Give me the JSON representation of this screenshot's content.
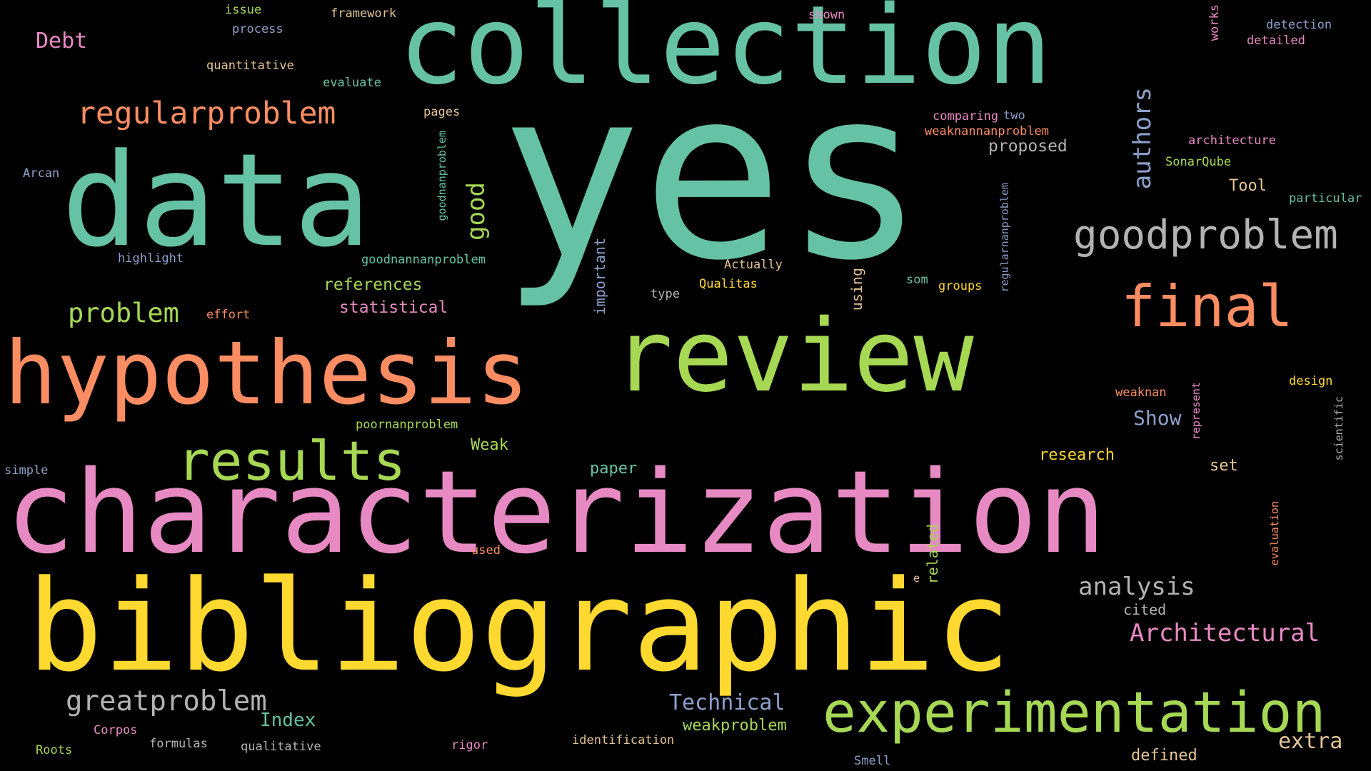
{
  "word_cloud": {
    "words": [
      {
        "text": "yes",
        "color": "#66C2A5"
      },
      {
        "text": "characterization",
        "color": "#E78AC3"
      },
      {
        "text": "bibliographic",
        "color": "#FFD92F"
      },
      {
        "text": "collection",
        "color": "#66C2A5"
      },
      {
        "text": "data",
        "color": "#66C2A5"
      },
      {
        "text": "review",
        "color": "#A6D854"
      },
      {
        "text": "hypothesis",
        "color": "#FC8D62"
      },
      {
        "text": "experimentation",
        "color": "#A6D854"
      },
      {
        "text": "results",
        "color": "#A6D854"
      },
      {
        "text": "final",
        "color": "#FC8D62"
      },
      {
        "text": "goodproblem",
        "color": "#B3B3B3"
      },
      {
        "text": "regularproblem",
        "color": "#FC8D62"
      },
      {
        "text": "greatproblem",
        "color": "#B3B3B3"
      },
      {
        "text": "Architectural",
        "color": "#E78AC3"
      },
      {
        "text": "analysis",
        "color": "#B3B3B3"
      },
      {
        "text": "problem",
        "color": "#A6D854"
      },
      {
        "text": "authors",
        "color": "#8DA0CB"
      },
      {
        "text": "Technical",
        "color": "#8DA0CB"
      },
      {
        "text": "extra",
        "color": "#E5C494"
      },
      {
        "text": "Debt",
        "color": "#E78AC3"
      },
      {
        "text": "good",
        "color": "#A6D854"
      },
      {
        "text": "Show",
        "color": "#8DA0CB"
      },
      {
        "text": "Index",
        "color": "#66C2A5"
      },
      {
        "text": "weakproblem",
        "color": "#A6D854"
      },
      {
        "text": "references",
        "color": "#A6D854"
      },
      {
        "text": "statistical",
        "color": "#E78AC3"
      },
      {
        "text": "proposed",
        "color": "#B3B3B3"
      },
      {
        "text": "research",
        "color": "#FFD92F"
      },
      {
        "text": "defined",
        "color": "#E5C494"
      },
      {
        "text": "Tool",
        "color": "#E5C494"
      },
      {
        "text": "paper",
        "color": "#66C2A5"
      },
      {
        "text": "Weak",
        "color": "#A6D854"
      },
      {
        "text": "set",
        "color": "#E5C494"
      },
      {
        "text": "cited",
        "color": "#B3B3B3"
      },
      {
        "text": "important",
        "color": "#8DA0CB"
      },
      {
        "text": "related",
        "color": "#A6D854"
      },
      {
        "text": "using",
        "color": "#E5C494"
      },
      {
        "text": "framework",
        "color": "#E5C494"
      },
      {
        "text": "issue",
        "color": "#A6D854"
      },
      {
        "text": "process",
        "color": "#8DA0CB"
      },
      {
        "text": "quantitative",
        "color": "#E5C494"
      },
      {
        "text": "evaluate",
        "color": "#66C2A5"
      },
      {
        "text": "pages",
        "color": "#E5C494"
      },
      {
        "text": "shown",
        "color": "#E78AC3"
      },
      {
        "text": "works",
        "color": "#E78AC3"
      },
      {
        "text": "detection",
        "color": "#8DA0CB"
      },
      {
        "text": "detailed",
        "color": "#E78AC3"
      },
      {
        "text": "comparing",
        "color": "#E78AC3"
      },
      {
        "text": "two",
        "color": "#8DA0CB"
      },
      {
        "text": "weaknannanproblem",
        "color": "#FC8D62"
      },
      {
        "text": "architecture",
        "color": "#E78AC3"
      },
      {
        "text": "SonarQube",
        "color": "#A6D854"
      },
      {
        "text": "particular",
        "color": "#66C2A5"
      },
      {
        "text": "Arcan",
        "color": "#8DA0CB"
      },
      {
        "text": "highlight",
        "color": "#8DA0CB"
      },
      {
        "text": "goodnannanproblem",
        "color": "#66C2A5"
      },
      {
        "text": "goodnanproblem",
        "color": "#66C2A5"
      },
      {
        "text": "regularnanproblem",
        "color": "#8DA0CB"
      },
      {
        "text": "Actually",
        "color": "#E5C494"
      },
      {
        "text": "Qualitas",
        "color": "#FFD92F"
      },
      {
        "text": "som",
        "color": "#66C2A5"
      },
      {
        "text": "groups",
        "color": "#FFD92F"
      },
      {
        "text": "type",
        "color": "#B3B3B3"
      },
      {
        "text": "effort",
        "color": "#FC8D62"
      },
      {
        "text": "design",
        "color": "#FFD92F"
      },
      {
        "text": "weaknan",
        "color": "#FC8D62"
      },
      {
        "text": "represent",
        "color": "#E78AC3"
      },
      {
        "text": "scientific",
        "color": "#B3B3B3"
      },
      {
        "text": "poornanproblem",
        "color": "#A6D854"
      },
      {
        "text": "simple",
        "color": "#8DA0CB"
      },
      {
        "text": "used",
        "color": "#FC8D62"
      },
      {
        "text": "evaluation",
        "color": "#FC8D62"
      },
      {
        "text": "e",
        "color": "#E5C494"
      },
      {
        "text": "Corpos",
        "color": "#E78AC3"
      },
      {
        "text": "formulas",
        "color": "#B3B3B3"
      },
      {
        "text": "qualitative",
        "color": "#B3B3B3"
      },
      {
        "text": "rigor",
        "color": "#E78AC3"
      },
      {
        "text": "identification",
        "color": "#E5C494"
      },
      {
        "text": "Smell",
        "color": "#8DA0CB"
      },
      {
        "text": "Roots",
        "color": "#A6D854"
      }
    ]
  }
}
